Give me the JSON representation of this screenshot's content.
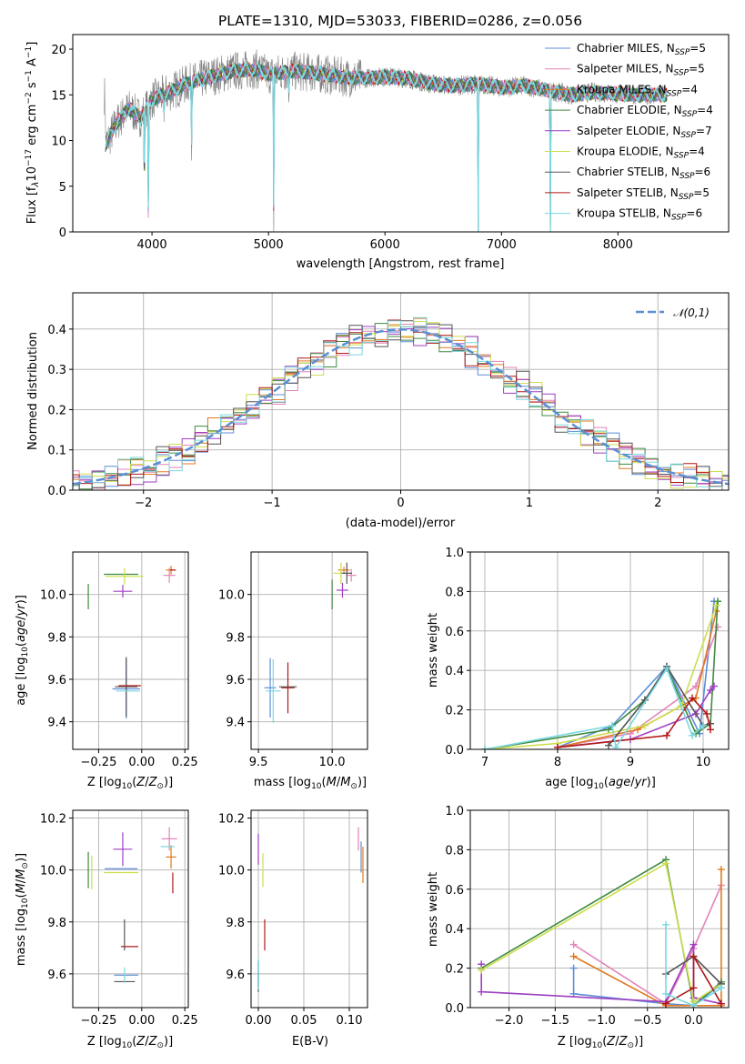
{
  "colors": {
    "c1": "#5d8ed8",
    "c2": "#e384b8",
    "c3": "#e07a1f",
    "c4": "#3f8a3f",
    "c5": "#9f3fc4",
    "c6": "#cddd4c",
    "c7": "#555555",
    "c8": "#b01818",
    "c9": "#79d8e0",
    "grey": "#808080",
    "normal": "#5b8fd4"
  },
  "chart_data": [
    {
      "type": "line",
      "title": "PLATE=1310, MJD=53033, FIBERID=0286, z=0.056",
      "xlabel": "wavelength [Angstrom, rest frame]",
      "ylabel": "Flux [fλ10^-17 erg cm^-2 s^-1 A^-1]",
      "xlim": [
        3320,
        8950
      ],
      "ylim": [
        0,
        21.6
      ],
      "xticks": [
        "4000",
        "5000",
        "6000",
        "7000",
        "8000"
      ],
      "yticks": [
        "0",
        "5",
        "10",
        "15",
        "20"
      ],
      "legend_position": "upper right",
      "legend": [
        {
          "name": "Chabrier MILES, N_SSP=5",
          "color": "c1"
        },
        {
          "name": "Salpeter MILES, N_SSP=5",
          "color": "c2"
        },
        {
          "name": "Kroupa MILES, N_SSP=4",
          "color": "c3"
        },
        {
          "name": "Chabrier ELODIE, N_SSP=4",
          "color": "c4"
        },
        {
          "name": "Salpeter ELODIE, N_SSP=7",
          "color": "c5"
        },
        {
          "name": "Kroupa ELODIE, N_SSP=4",
          "color": "c6"
        },
        {
          "name": "Chabrier STELIB, N_SSP=6",
          "color": "c7"
        },
        {
          "name": "Salpeter STELIB, N_SSP=5",
          "color": "c8"
        },
        {
          "name": "Kroupa STELIB, N_SSP=6",
          "color": "c9"
        }
      ],
      "continuum_points": [
        [
          3600,
          9.5
        ],
        [
          3700,
          12
        ],
        [
          3800,
          13.5
        ],
        [
          3900,
          12.5
        ],
        [
          4000,
          14.5
        ],
        [
          4100,
          15
        ],
        [
          4300,
          16.2
        ],
        [
          4500,
          17
        ],
        [
          4700,
          17.6
        ],
        [
          4900,
          17.8
        ],
        [
          5000,
          17.2
        ],
        [
          5200,
          17.6
        ],
        [
          5400,
          17.4
        ],
        [
          5600,
          17
        ],
        [
          5800,
          16.8
        ],
        [
          6000,
          17
        ],
        [
          6200,
          16.8
        ],
        [
          6400,
          16.2
        ],
        [
          6600,
          16
        ],
        [
          6800,
          16.2
        ],
        [
          7000,
          15.8
        ],
        [
          7200,
          16
        ],
        [
          7400,
          15.5
        ],
        [
          7600,
          15
        ],
        [
          7800,
          15.3
        ],
        [
          8000,
          15.1
        ],
        [
          8200,
          15
        ],
        [
          8400,
          15
        ]
      ],
      "absorption_features": [
        [
          3934,
          4.5
        ],
        [
          3969,
          0
        ],
        [
          4102,
          13
        ],
        [
          4340,
          10
        ],
        [
          5045,
          0
        ],
        [
          5175,
          15.5
        ],
        [
          6800,
          0
        ],
        [
          7420,
          0
        ]
      ]
    },
    {
      "type": "bar",
      "xlabel": "(data-model)/error",
      "ylabel": "Normed distribution",
      "xlim": [
        -2.55,
        2.55
      ],
      "ylim": [
        0,
        0.49
      ],
      "xticks": [
        "−2",
        "−1",
        "0",
        "1",
        "2"
      ],
      "yticks": [
        "0.0",
        "0.1",
        "0.2",
        "0.3",
        "0.4"
      ],
      "legend_position": "upper right",
      "legend": [
        {
          "name": "𝒩(0,1)",
          "color": "normal"
        }
      ],
      "bin_width": 0.1
    },
    {
      "type": "scatter",
      "xlabel": "Z [log10(Z/Z⊙)]",
      "ylabel": "age  [log10(age/yr)]",
      "xlim": [
        -0.4,
        0.27
      ],
      "ylim": [
        9.27,
        10.2
      ],
      "xticks": [
        "−0.25",
        "0.00",
        "0.25"
      ],
      "yticks": [
        "9.4",
        "9.6",
        "9.8",
        "10.0"
      ],
      "points": [
        {
          "c": "c1",
          "x": -0.09,
          "y": 9.555,
          "dx": 0.16,
          "dy": 0.28
        },
        {
          "c": "c2",
          "x": 0.16,
          "y": 10.09,
          "dx": 0.07,
          "dy": 0.07
        },
        {
          "c": "c3",
          "x": 0.17,
          "y": 10.115,
          "dx": 0.06,
          "dy": 0.04
        },
        {
          "c": "c4",
          "x": -0.12,
          "y": 10.095,
          "dx": 0.2,
          "dy": 0.0
        },
        {
          "c": "c5",
          "x": -0.11,
          "y": 10.015,
          "dx": 0.11,
          "dy": 0.06
        },
        {
          "c": "c6",
          "x": -0.1,
          "y": 10.085,
          "dx": 0.22,
          "dy": 0.08
        },
        {
          "c": "c7",
          "x": -0.09,
          "y": 9.565,
          "dx": 0.13,
          "dy": 0.28
        },
        {
          "c": "c8",
          "x": -0.07,
          "y": 9.57,
          "dx": 0.13,
          "dy": 0.0
        },
        {
          "c": "c9",
          "x": -0.08,
          "y": 9.545,
          "dx": 0.14,
          "dy": 0.0
        },
        {
          "c": "c4",
          "x": -0.31,
          "y": 9.99,
          "dx": 0.0,
          "dy": 0.12
        },
        {
          "c": "c8",
          "x": 0.18,
          "y": 10.115,
          "dx": 0.03,
          "dy": 0.0
        }
      ]
    },
    {
      "type": "scatter",
      "xlabel": "mass [log10(M/M⊙)]",
      "ylabel": "",
      "xlim": [
        9.45,
        10.24
      ],
      "ylim": [
        9.27,
        10.2
      ],
      "xticks": [
        "9.5",
        "10.0"
      ],
      "yticks": [
        "9.4",
        "9.6",
        "9.8",
        "10.0"
      ],
      "points": [
        {
          "c": "c1",
          "x": 9.58,
          "y": 9.56,
          "dx": 0.08,
          "dy": 0.28
        },
        {
          "c": "c2",
          "x": 10.13,
          "y": 10.09,
          "dx": 0.07,
          "dy": 0.06
        },
        {
          "c": "c3",
          "x": 10.08,
          "y": 10.115,
          "dx": 0.08,
          "dy": 0.03
        },
        {
          "c": "c4",
          "x": 10.0,
          "y": 10.0,
          "dx": 0.0,
          "dy": 0.14
        },
        {
          "c": "c5",
          "x": 10.07,
          "y": 10.02,
          "dx": 0.08,
          "dy": 0.07
        },
        {
          "c": "c6",
          "x": 10.06,
          "y": 10.1,
          "dx": 0.1,
          "dy": 0.1
        },
        {
          "c": "c7",
          "x": 10.1,
          "y": 10.1,
          "dx": 0.07,
          "dy": 0.1
        },
        {
          "c": "c8",
          "x": 9.7,
          "y": 9.56,
          "dx": 0.09,
          "dy": 0.24
        },
        {
          "c": "c9",
          "x": 9.6,
          "y": 9.545,
          "dx": 0.1,
          "dy": 0.3
        },
        {
          "c": "c7",
          "x": 9.7,
          "y": 9.565,
          "dx": 0.12,
          "dy": 0.0
        }
      ]
    },
    {
      "type": "line",
      "xlabel": "age  [log10(age/yr)]",
      "ylabel": "mass weight",
      "xlim": [
        6.8,
        10.35
      ],
      "ylim": [
        0,
        1.0
      ],
      "xticks": [
        "7",
        "8",
        "9",
        "10"
      ],
      "yticks": [
        "0.0",
        "0.2",
        "0.4",
        "0.6",
        "0.8",
        "1.0"
      ],
      "series": [
        {
          "c": "c1",
          "pts": [
            [
              8.0,
              0.01
            ],
            [
              8.75,
              0.12
            ],
            [
              9.5,
              0.42
            ],
            [
              9.95,
              0.08
            ],
            [
              10.15,
              0.75
            ]
          ]
        },
        {
          "c": "c2",
          "pts": [
            [
              8.0,
              0.01
            ],
            [
              9.0,
              0.08
            ],
            [
              9.9,
              0.32
            ],
            [
              10.2,
              0.62
            ]
          ]
        },
        {
          "c": "c3",
          "pts": [
            [
              8.0,
              0.01
            ],
            [
              9.1,
              0.1
            ],
            [
              9.9,
              0.26
            ],
            [
              10.18,
              0.7
            ]
          ]
        },
        {
          "c": "c4",
          "pts": [
            [
              7.0,
              0.0
            ],
            [
              8.7,
              0.1
            ],
            [
              9.2,
              0.25
            ],
            [
              9.5,
              0.41
            ],
            [
              9.9,
              0.08
            ],
            [
              10.1,
              0.13
            ],
            [
              10.2,
              0.75
            ]
          ]
        },
        {
          "c": "c5",
          "pts": [
            [
              8.0,
              0.01
            ],
            [
              9.0,
              0.05
            ],
            [
              9.9,
              0.18
            ],
            [
              10.1,
              0.3
            ],
            [
              10.15,
              0.32
            ]
          ]
        },
        {
          "c": "c6",
          "pts": [
            [
              7.0,
              0.0
            ],
            [
              8.0,
              0.03
            ],
            [
              9.2,
              0.12
            ],
            [
              9.7,
              0.22
            ],
            [
              10.18,
              0.73
            ]
          ]
        },
        {
          "c": "c7",
          "pts": [
            [
              8.7,
              0.02
            ],
            [
              9.2,
              0.25
            ],
            [
              9.5,
              0.42
            ],
            [
              10.0,
              0.12
            ],
            [
              10.1,
              0.13
            ]
          ]
        },
        {
          "c": "c8",
          "pts": [
            [
              8.0,
              0.01
            ],
            [
              9.5,
              0.07
            ],
            [
              9.85,
              0.26
            ],
            [
              10.05,
              0.18
            ],
            [
              10.1,
              0.1
            ]
          ]
        },
        {
          "c": "c9",
          "pts": [
            [
              7.0,
              0.0
            ],
            [
              8.75,
              0.12
            ],
            [
              8.8,
              0.01
            ],
            [
              9.5,
              0.41
            ],
            [
              9.85,
              0.07
            ],
            [
              10.0,
              0.12
            ]
          ]
        }
      ]
    },
    {
      "type": "scatter",
      "xlabel": "Z [log10(Z/Z⊙)]",
      "ylabel": "mass [log10(M/M⊙)]",
      "xlim": [
        -0.4,
        0.27
      ],
      "ylim": [
        9.47,
        10.23
      ],
      "xticks": [
        "−0.25",
        "0.00",
        "0.25"
      ],
      "yticks": [
        "9.6",
        "9.8",
        "10.0",
        "10.2"
      ],
      "points": [
        {
          "c": "c1",
          "x": -0.09,
          "y": 9.595,
          "dx": 0.14,
          "dy": 0.0
        },
        {
          "c": "c2",
          "x": 0.16,
          "y": 10.12,
          "dx": 0.09,
          "dy": 0.09
        },
        {
          "c": "c3",
          "x": 0.17,
          "y": 10.05,
          "dx": 0.06,
          "dy": 0.09
        },
        {
          "c": "c4",
          "x": -0.31,
          "y": 10.0,
          "dx": 0.0,
          "dy": 0.14
        },
        {
          "c": "c5",
          "x": -0.11,
          "y": 10.08,
          "dx": 0.11,
          "dy": 0.13
        },
        {
          "c": "c6",
          "x": -0.29,
          "y": 9.99,
          "dx": 0.0,
          "dy": 0.13
        },
        {
          "c": "c7",
          "x": -0.1,
          "y": 9.57,
          "dx": 0.12,
          "dy": 0.0
        },
        {
          "c": "c8",
          "x": -0.07,
          "y": 9.705,
          "dx": 0.1,
          "dy": 0.0
        },
        {
          "c": "c9",
          "x": -0.1,
          "y": 9.595,
          "dx": 0.0,
          "dy": 0.06
        },
        {
          "c": "c7",
          "x": -0.1,
          "y": 9.75,
          "dx": 0.0,
          "dy": 0.12
        },
        {
          "c": "c1",
          "x": -0.12,
          "y": 10.005,
          "dx": 0.19,
          "dy": 0.0
        },
        {
          "c": "c6",
          "x": -0.12,
          "y": 9.99,
          "dx": 0.2,
          "dy": 0.0
        },
        {
          "c": "c8",
          "x": 0.18,
          "y": 9.95,
          "dx": 0.0,
          "dy": 0.08
        },
        {
          "c": "c9",
          "x": 0.15,
          "y": 10.09,
          "dx": 0.08,
          "dy": 0.0
        }
      ]
    },
    {
      "type": "scatter",
      "xlabel": "E(B-V)",
      "ylabel": "",
      "xlim": [
        -0.008,
        0.12
      ],
      "ylim": [
        9.47,
        10.23
      ],
      "xticks": [
        "0.00",
        "0.05",
        "0.10"
      ],
      "yticks": [
        "9.6",
        "9.8",
        "10.0",
        "10.2"
      ],
      "points": [
        {
          "c": "c1",
          "x": 0.0,
          "y": 9.6,
          "dx": 0.0,
          "dy": 0.1
        },
        {
          "c": "c2",
          "x": 0.11,
          "y": 10.12,
          "dx": 0.0,
          "dy": 0.09
        },
        {
          "c": "c3",
          "x": 0.115,
          "y": 10.02,
          "dx": 0.0,
          "dy": 0.14
        },
        {
          "c": "c4",
          "x": 0.0,
          "y": 9.6,
          "dx": 0.0,
          "dy": 0.1
        },
        {
          "c": "c5",
          "x": 0.0,
          "y": 10.08,
          "dx": 0.0,
          "dy": 0.12
        },
        {
          "c": "c6",
          "x": 0.005,
          "y": 10.0,
          "dx": 0.0,
          "dy": 0.13
        },
        {
          "c": "c7",
          "x": 0.0,
          "y": 9.57,
          "dx": 0.0,
          "dy": 0.08
        },
        {
          "c": "c8",
          "x": 0.007,
          "y": 9.75,
          "dx": 0.0,
          "dy": 0.12
        },
        {
          "c": "c9",
          "x": 0.0,
          "y": 9.6,
          "dx": 0.0,
          "dy": 0.12
        },
        {
          "c": "c1",
          "x": 0.113,
          "y": 10.05,
          "dx": 0.0,
          "dy": 0.12
        }
      ]
    },
    {
      "type": "line",
      "xlabel": "Z [log10(Z/Z⊙)]",
      "ylabel": "mass weight",
      "xlim": [
        -2.42,
        0.38
      ],
      "ylim": [
        0,
        1.0
      ],
      "xticks": [
        "−2.0",
        "−1.5",
        "−1.0",
        "−0.5",
        "0.0"
      ],
      "yticks": [
        "0.0",
        "0.2",
        "0.4",
        "0.6",
        "0.8",
        "1.0"
      ],
      "series": [
        {
          "c": "c1",
          "pts": [
            [
              -1.3,
              0.2
            ],
            [
              -1.3,
              0.07
            ],
            [
              -0.3,
              0.02
            ],
            [
              0.0,
              0.01
            ],
            [
              0.3,
              0.12
            ]
          ]
        },
        {
          "c": "c2",
          "pts": [
            [
              -1.3,
              0.32
            ],
            [
              -0.3,
              0.02
            ],
            [
              0.0,
              0.3
            ],
            [
              0.3,
              0.62
            ]
          ]
        },
        {
          "c": "c3",
          "pts": [
            [
              -1.3,
              0.26
            ],
            [
              -0.3,
              0.01
            ],
            [
              0.3,
              0.01
            ],
            [
              0.3,
              0.7
            ]
          ]
        },
        {
          "c": "c4",
          "pts": [
            [
              -2.3,
              0.2
            ],
            [
              -0.3,
              0.75
            ],
            [
              0.0,
              0.01
            ],
            [
              0.3,
              0.13
            ]
          ]
        },
        {
          "c": "c5",
          "pts": [
            [
              -2.3,
              0.22
            ],
            [
              -2.3,
              0.08
            ],
            [
              -0.3,
              0.03
            ],
            [
              0.0,
              0.32
            ],
            [
              0.0,
              0.05
            ],
            [
              0.3,
              0.02
            ]
          ]
        },
        {
          "c": "c6",
          "pts": [
            [
              -2.3,
              0.19
            ],
            [
              -0.3,
              0.73
            ],
            [
              0.0,
              0.03
            ],
            [
              0.3,
              0.12
            ]
          ]
        },
        {
          "c": "c7",
          "pts": [
            [
              -0.3,
              0.17
            ],
            [
              0.0,
              0.26
            ],
            [
              0.3,
              0.12
            ]
          ]
        },
        {
          "c": "c8",
          "pts": [
            [
              -0.3,
              0.02
            ],
            [
              0.0,
              0.1
            ],
            [
              0.0,
              0.26
            ],
            [
              0.3,
              0.02
            ]
          ]
        },
        {
          "c": "c9",
          "pts": [
            [
              -0.3,
              0.42
            ],
            [
              -0.3,
              0.07
            ],
            [
              0.0,
              0.01
            ],
            [
              0.3,
              0.1
            ]
          ]
        }
      ]
    }
  ]
}
